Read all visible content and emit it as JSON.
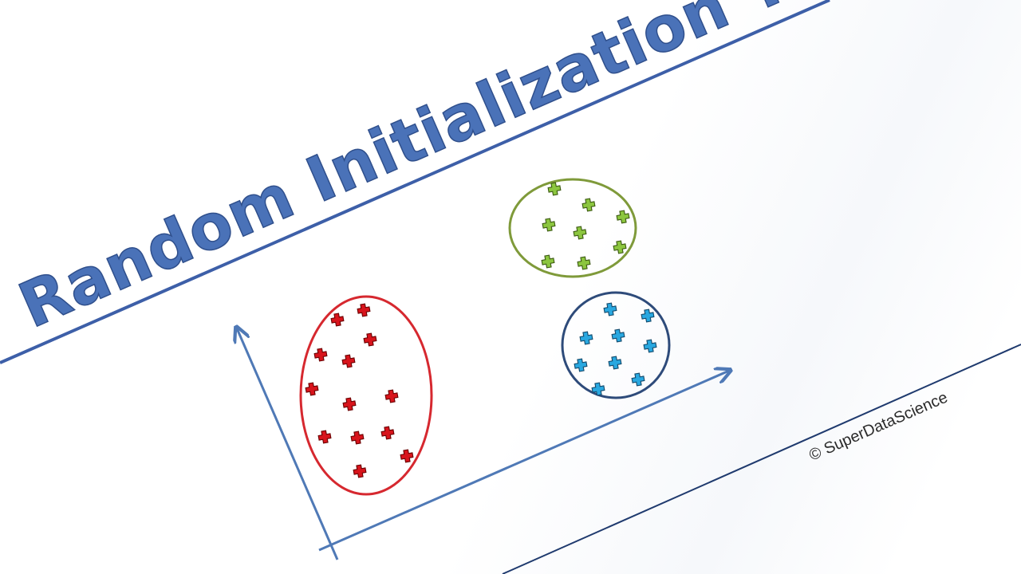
{
  "slide": {
    "title": "Random Initialization Trap",
    "copyright": "© SuperDataScience"
  },
  "colors": {
    "title": "#4a72b8",
    "band_lines": "#3d5fa8",
    "bottom_line": "#1f3a6e",
    "axes": "#4f79b6",
    "cluster_red_ellipse": "#d6282f",
    "cluster_red_marker": "#d8141c",
    "cluster_green_ellipse": "#7f9a3a",
    "cluster_green_marker": "#8cc63f",
    "cluster_blue_ellipse": "#2e4b7a",
    "cluster_blue_marker": "#29a8e0"
  },
  "clusters": [
    {
      "name": "red",
      "marker_count": 13
    },
    {
      "name": "green",
      "marker_count": 8
    },
    {
      "name": "blue",
      "marker_count": 9
    }
  ]
}
